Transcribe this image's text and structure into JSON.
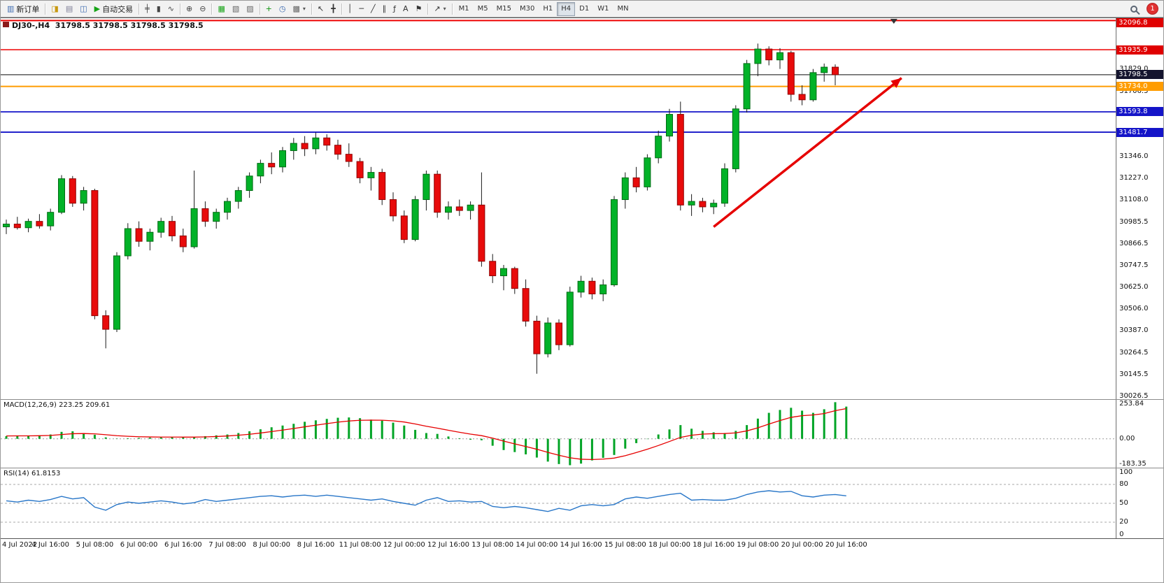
{
  "toolbar": {
    "notification_count": "1",
    "groups": [
      [
        {
          "name": "new-order-button",
          "label": "新订单",
          "glyph": "▥",
          "color": "#3c6ab0"
        }
      ],
      [
        {
          "name": "charts-button",
          "glyph": "◨",
          "color": "#c79810"
        },
        {
          "name": "profiles-button",
          "glyph": "▤",
          "color": "#7d7d96"
        },
        {
          "name": "market-watch-button",
          "glyph": "◫",
          "color": "#3c6ab0"
        },
        {
          "name": "auto-trading-button",
          "label": "自动交易",
          "glyph": "▶",
          "color": "#15a315"
        }
      ],
      [
        {
          "name": "bar-chart-button",
          "glyph": "╪",
          "color": "#444444"
        },
        {
          "name": "candlestick-chart-button",
          "glyph": "▮",
          "color": "#444444"
        },
        {
          "name": "line-chart-button",
          "glyph": "∿",
          "color": "#444444"
        }
      ],
      [
        {
          "name": "zoom-in-button",
          "glyph": "⊕",
          "color": "#444444"
        },
        {
          "name": "zoom-out-button",
          "glyph": "⊖",
          "color": "#444444"
        }
      ],
      [
        {
          "name": "tile-windows-button",
          "glyph": "▦",
          "color": "#15a315"
        },
        {
          "name": "cascade-windows-button",
          "glyph": "▧",
          "color": "#666666"
        },
        {
          "name": "arrange-windows-button",
          "glyph": "▨",
          "color": "#666666"
        }
      ],
      [
        {
          "name": "indicators-button",
          "glyph": "+",
          "color": "#0c930c"
        },
        {
          "name": "periods-button",
          "glyph": "◷",
          "color": "#3c6ab0"
        },
        {
          "name": "templates-button",
          "glyph": "▩",
          "color": "#666666",
          "dropdown": true
        }
      ],
      [
        {
          "name": "cursor-button",
          "glyph": "↖",
          "color": "#333333"
        },
        {
          "name": "crosshair-button",
          "glyph": "╋",
          "color": "#333333"
        }
      ],
      [
        {
          "name": "vertical-line-button",
          "glyph": "│",
          "color": "#333333"
        },
        {
          "name": "horizontal-line-button",
          "glyph": "─",
          "color": "#333333"
        },
        {
          "name": "trendline-button",
          "glyph": "╱",
          "color": "#333333"
        },
        {
          "name": "channel-button",
          "glyph": "∥",
          "color": "#333333"
        },
        {
          "name": "fibonacci-button",
          "glyph": "ƒ",
          "color": "#333333"
        },
        {
          "name": "text-button",
          "glyph": "A",
          "color": "#333333"
        },
        {
          "name": "label-button",
          "glyph": "⚑",
          "color": "#333333"
        }
      ],
      [
        {
          "name": "shapes-button",
          "glyph": "↗",
          "color": "#333333",
          "dropdown": true
        }
      ],
      [
        {
          "name": "timeframe-m1",
          "label": "M1",
          "tf": true
        },
        {
          "name": "timeframe-m5",
          "label": "M5",
          "tf": true
        },
        {
          "name": "timeframe-m15",
          "label": "M15",
          "tf": true
        },
        {
          "name": "timeframe-m30",
          "label": "M30",
          "tf": true
        },
        {
          "name": "timeframe-h1",
          "label": "H1",
          "tf": true
        },
        {
          "name": "timeframe-h4",
          "label": "H4",
          "tf": true,
          "active": true
        },
        {
          "name": "timeframe-d1",
          "label": "D1",
          "tf": true
        },
        {
          "name": "timeframe-w1",
          "label": "W1",
          "tf": true
        },
        {
          "name": "timeframe-mn",
          "label": "MN",
          "tf": true
        }
      ]
    ]
  },
  "chart": {
    "ohlc_title": "DJ30-,H4  31798.5 31798.5 31798.5 31798.5"
  },
  "chart_data": {
    "type": "candlestick",
    "symbol": "DJ30-",
    "timeframe": "H4",
    "last_price": 31798.5,
    "colors": {
      "up": "#02b228",
      "up_border": "#006b14",
      "down": "#e80b0b",
      "down_border": "#8f0404",
      "wick": "#1a1a1a",
      "macd_hist": "#02a426",
      "macd_signal": "#e60000",
      "rsi_line": "#2876c8"
    },
    "price_axis": {
      "max": 32110,
      "min": 30010,
      "labels": [
        "32067.0",
        "31829.0",
        "31706.5",
        "31587.5",
        "31465.5",
        "31346.0",
        "31227.0",
        "31108.0",
        "30985.5",
        "30866.5",
        "30747.5",
        "30625.0",
        "30506.0",
        "30387.0",
        "30264.5",
        "30145.5",
        "30026.5"
      ]
    },
    "hlines": [
      {
        "price": 32096.8,
        "label": "32096.8",
        "color": "#ee0000",
        "badge_bg": "#e00000",
        "width": 2
      },
      {
        "price": 31935.9,
        "label": "31935.9",
        "color": "#ee0000",
        "badge_bg": "#e00000",
        "width": 1.5
      },
      {
        "price": 31798.5,
        "label": "31798.5",
        "color": "#3a3a3a",
        "badge_bg": "#14142e",
        "width": 1.2
      },
      {
        "price": 31734.0,
        "label": "31734.0",
        "color": "#ff9c00",
        "badge_bg": "#ff9c00",
        "width": 2
      },
      {
        "price": 31593.8,
        "label": "31593.8",
        "color": "#1414c8",
        "badge_bg": "#1414c8",
        "width": 1.8
      },
      {
        "price": 31481.7,
        "label": "31481.7",
        "color": "#1414c8",
        "badge_bg": "#1414c8",
        "width": 1.8
      }
    ],
    "candles": [
      [
        30960,
        31000,
        30920,
        30975
      ],
      [
        30975,
        31015,
        30945,
        30955
      ],
      [
        30955,
        31005,
        30930,
        30990
      ],
      [
        30990,
        31030,
        30950,
        30965
      ],
      [
        30965,
        31060,
        30940,
        31040
      ],
      [
        31040,
        31245,
        31030,
        31225
      ],
      [
        31225,
        31240,
        31070,
        31090
      ],
      [
        31090,
        31180,
        31050,
        31160
      ],
      [
        31160,
        31170,
        30450,
        30470
      ],
      [
        30470,
        30500,
        30290,
        30395
      ],
      [
        30395,
        30820,
        30380,
        30800
      ],
      [
        30800,
        30980,
        30780,
        30950
      ],
      [
        30950,
        30990,
        30850,
        30880
      ],
      [
        30880,
        30950,
        30830,
        30930
      ],
      [
        30930,
        31010,
        30900,
        30990
      ],
      [
        30990,
        31020,
        30880,
        30910
      ],
      [
        30910,
        30950,
        30820,
        30850
      ],
      [
        30850,
        31270,
        30840,
        31060
      ],
      [
        31060,
        31100,
        30960,
        30990
      ],
      [
        30990,
        31060,
        30950,
        31040
      ],
      [
        31040,
        31120,
        31000,
        31100
      ],
      [
        31100,
        31180,
        31060,
        31160
      ],
      [
        31160,
        31260,
        31120,
        31240
      ],
      [
        31240,
        31330,
        31200,
        31310
      ],
      [
        31310,
        31370,
        31250,
        31290
      ],
      [
        31290,
        31400,
        31260,
        31380
      ],
      [
        31380,
        31450,
        31330,
        31420
      ],
      [
        31420,
        31460,
        31350,
        31390
      ],
      [
        31390,
        31480,
        31360,
        31450
      ],
      [
        31450,
        31470,
        31380,
        31410
      ],
      [
        31410,
        31440,
        31330,
        31360
      ],
      [
        31360,
        31420,
        31290,
        31320
      ],
      [
        31320,
        31340,
        31200,
        31230
      ],
      [
        31230,
        31290,
        31160,
        31260
      ],
      [
        31260,
        31280,
        31080,
        31110
      ],
      [
        31110,
        31150,
        30990,
        31020
      ],
      [
        31020,
        31050,
        30870,
        30890
      ],
      [
        30890,
        31130,
        30880,
        31110
      ],
      [
        31110,
        31270,
        31050,
        31250
      ],
      [
        31250,
        31270,
        31010,
        31040
      ],
      [
        31040,
        31100,
        31000,
        31070
      ],
      [
        31070,
        31110,
        31020,
        31050
      ],
      [
        31050,
        31100,
        31000,
        31080
      ],
      [
        31080,
        31260,
        30740,
        30770
      ],
      [
        30770,
        30810,
        30650,
        30690
      ],
      [
        30690,
        30750,
        30610,
        30730
      ],
      [
        30730,
        30740,
        30590,
        30620
      ],
      [
        30620,
        30670,
        30410,
        30440
      ],
      [
        30440,
        30470,
        30150,
        30260
      ],
      [
        30260,
        30460,
        30240,
        30430
      ],
      [
        30430,
        30450,
        30280,
        30310
      ],
      [
        30310,
        30630,
        30300,
        30600
      ],
      [
        30600,
        30690,
        30570,
        30660
      ],
      [
        30660,
        30680,
        30560,
        30590
      ],
      [
        30590,
        30670,
        30550,
        30640
      ],
      [
        30640,
        31130,
        30630,
        31110
      ],
      [
        31110,
        31260,
        31060,
        31230
      ],
      [
        31230,
        31290,
        31150,
        31180
      ],
      [
        31180,
        31360,
        31160,
        31340
      ],
      [
        31340,
        31490,
        31310,
        31460
      ],
      [
        31460,
        31610,
        31430,
        31580
      ],
      [
        31580,
        31650,
        31050,
        31080
      ],
      [
        31080,
        31140,
        31020,
        31100
      ],
      [
        31100,
        31120,
        31040,
        31070
      ],
      [
        31070,
        31110,
        31030,
        31090
      ],
      [
        31090,
        31310,
        31070,
        31280
      ],
      [
        31280,
        31630,
        31260,
        31610
      ],
      [
        31610,
        31880,
        31590,
        31860
      ],
      [
        31860,
        31970,
        31790,
        31940
      ],
      [
        31940,
        31955,
        31850,
        31880
      ],
      [
        31880,
        31945,
        31830,
        31920
      ],
      [
        31920,
        31930,
        31650,
        31690
      ],
      [
        31690,
        31740,
        31630,
        31660
      ],
      [
        31660,
        31830,
        31650,
        31810
      ],
      [
        31810,
        31860,
        31760,
        31840
      ],
      [
        31840,
        31855,
        31740,
        31798.5
      ]
    ],
    "time_labels": [
      "4 Jul 2022",
      "4 Jul 16:00",
      "5 Jul 08:00",
      "6 Jul 00:00",
      "6 Jul 16:00",
      "7 Jul 08:00",
      "8 Jul 00:00",
      "8 Jul 16:00",
      "11 Jul 08:00",
      "12 Jul 00:00",
      "12 Jul 16:00",
      "13 Jul 08:00",
      "14 Jul 00:00",
      "14 Jul 16:00",
      "15 Jul 08:00",
      "18 Jul 00:00",
      "18 Jul 16:00",
      "19 Jul 08:00",
      "20 Jul 00:00",
      "20 Jul 16:00"
    ],
    "time_label_step": 4,
    "arrow": {
      "from": {
        "index": 64,
        "price": 30960
      },
      "to": {
        "index": 81,
        "price": 31780
      },
      "color": "#e60000",
      "width": 3.5
    },
    "shift_marker_x_frac": 0.8,
    "macd": {
      "label": "MACD(12,26,9) 223.25 209.61",
      "params": "12,26,9",
      "main_value": 223.25,
      "signal_value": 209.61,
      "scale_max": 270,
      "scale_min": -200,
      "scale_labels": [
        "253.84",
        "0.00",
        "-183.35"
      ],
      "histogram": [
        18,
        22,
        20,
        24,
        30,
        48,
        52,
        40,
        28,
        10,
        2,
        4,
        6,
        8,
        10,
        12,
        10,
        12,
        18,
        24,
        30,
        40,
        52,
        66,
        80,
        92,
        104,
        118,
        128,
        138,
        146,
        148,
        143,
        133,
        126,
        112,
        92,
        62,
        40,
        34,
        16,
        4,
        -6,
        -10,
        -48,
        -78,
        -92,
        -108,
        -130,
        -158,
        -175,
        -183,
        -172,
        -150,
        -132,
        -112,
        -68,
        -30,
        -2,
        30,
        65,
        95,
        70,
        55,
        45,
        40,
        55,
        95,
        140,
        180,
        200,
        215,
        195,
        180,
        205,
        253.84,
        223.25
      ],
      "signal": [
        20,
        20.5,
        20.4,
        21.3,
        23.5,
        29.6,
        35.2,
        36.4,
        34.3,
        28.2,
        21.7,
        17.3,
        14.4,
        12.8,
        12.1,
        12.1,
        11.6,
        11.7,
        13.3,
        16,
        19.5,
        24.6,
        31.5,
        40.1,
        50.1,
        60.6,
        71.4,
        83.1,
        94.3,
        105.2,
        115.4,
        123.6,
        128.4,
        129.6,
        128.7,
        124.5,
        116.4,
        102.8,
        87.1,
        73.8,
        59.3,
        45.5,
        32.6,
        22,
        4.5,
        -16.1,
        -35.1,
        -53.3,
        -72.5,
        -93.9,
        -114.2,
        -131.4,
        -141.6,
        -143.7,
        -140.7,
        -133.6,
        -117.2,
        -95.4,
        -72,
        -46.5,
        -18.6,
        9.8,
        24.8,
        32.4,
        35.5,
        36.6,
        41.2,
        54.7,
        76,
        102,
        126.5,
        148.6,
        160.2,
        165.2,
        175.1,
        194.8,
        209.61
      ]
    },
    "rsi": {
      "label": "RSI(14) 61.8153",
      "value": 61.8153,
      "levels": [
        80,
        50,
        20
      ],
      "scale_labels": [
        "100",
        "80",
        "50",
        "20",
        "0"
      ],
      "values": [
        54,
        52,
        55,
        53,
        56,
        61,
        57,
        59,
        44,
        39,
        48,
        52,
        50,
        52,
        54,
        52,
        49,
        51,
        56,
        53,
        55,
        57,
        59,
        61,
        62,
        60,
        62,
        63,
        61,
        63,
        61,
        59,
        57,
        55,
        57,
        53,
        50,
        47,
        55,
        59,
        53,
        54,
        52,
        53,
        45,
        43,
        45,
        43,
        40,
        37,
        42,
        39,
        46,
        48,
        46,
        48,
        57,
        60,
        58,
        61,
        64,
        66,
        55,
        56,
        55,
        55,
        58,
        64,
        68,
        70,
        68,
        69,
        62,
        60,
        63,
        64,
        61.82
      ]
    }
  }
}
